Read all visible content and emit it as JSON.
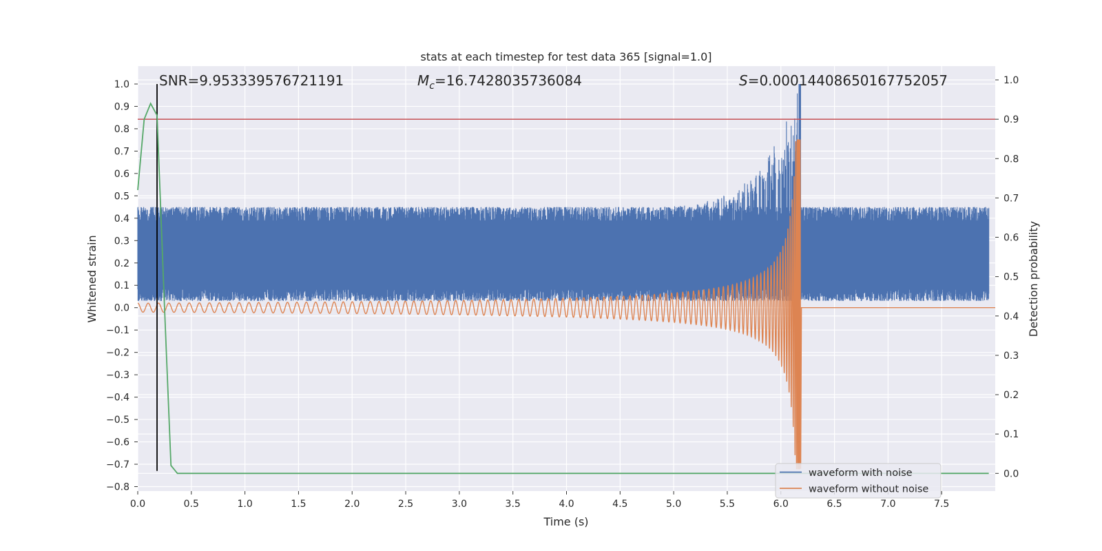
{
  "chart_data": {
    "type": "line",
    "title": "stats at each timestep for test data 365 [signal=1.0]",
    "xlabel": "Time (s)",
    "ylabel": "Whitened strain",
    "ylabel_right": "Detection probability",
    "xlim": [
      0.0,
      8.0
    ],
    "ylim": [
      -0.82,
      1.08
    ],
    "ylim_right": [
      -0.045,
      1.035
    ],
    "x_ticks": [
      "0.0",
      "0.5",
      "1.0",
      "1.5",
      "2.0",
      "2.5",
      "3.0",
      "3.5",
      "4.0",
      "4.5",
      "5.0",
      "5.5",
      "6.0",
      "6.5",
      "7.0",
      "7.5"
    ],
    "y_ticks": [
      "1.0",
      "0.9",
      "0.8",
      "0.7",
      "0.6",
      "0.5",
      "0.4",
      "0.3",
      "0.2",
      "0.1",
      "0.0",
      "−0.1",
      "−0.2",
      "−0.3",
      "−0.4",
      "−0.5",
      "−0.6",
      "−0.7",
      "−0.8"
    ],
    "y_ticks_right": [
      "1.0",
      "0.9",
      "0.8",
      "0.7",
      "0.6",
      "0.5",
      "0.4",
      "0.3",
      "0.2",
      "0.1",
      "0.0"
    ],
    "grid": true,
    "annotations": {
      "snr": "SNR=9.953339576721191",
      "mc_symbol": "M",
      "mc_sub": "c",
      "mc_value": "=16.7428035736084",
      "s_symbol": "S",
      "s_value": "=0.00014408650167752057"
    },
    "legend": {
      "placement": "bottom-right",
      "entries": [
        "waveform with noise",
        "waveform without noise"
      ]
    },
    "series": [
      {
        "name": "waveform with noise",
        "color": "#4c72b0",
        "noise_band": [
          0.03,
          0.45
        ],
        "chirp_peak_time": 6.18,
        "chirp_peak_value": 1.0
      },
      {
        "name": "waveform without noise",
        "color": "#dd8452",
        "start_amplitude": 0.02,
        "merger_time": 6.18,
        "peak_max": 0.75,
        "peak_min": -0.72
      },
      {
        "color": "#55a868",
        "axis": "right",
        "x": [
          0.0,
          0.06,
          0.12,
          0.18,
          0.25,
          0.31,
          0.37,
          0.44,
          7.94
        ],
        "y": [
          0.72,
          0.9,
          0.94,
          0.91,
          0.42,
          0.02,
          0.0,
          0.0,
          0.0
        ]
      }
    ],
    "hlines": [
      {
        "axis": "right",
        "value": 0.9,
        "color": "#c44e52"
      }
    ],
    "vlines": [
      {
        "x": 0.18,
        "y_range": [
          -0.73,
          1.0
        ],
        "color": "#000000"
      }
    ]
  }
}
